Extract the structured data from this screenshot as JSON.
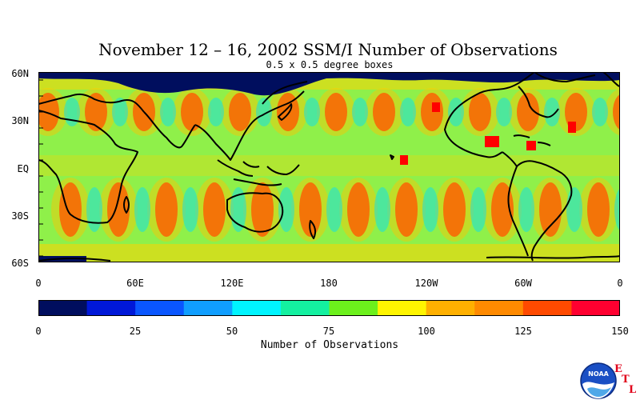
{
  "title": "November 12 – 16, 2002 SSM/I Number of Observations",
  "subtitle": "0.5 x 0.5 degree boxes",
  "lat_labels": [
    "60N",
    "30N",
    "EQ",
    "30S",
    "60S"
  ],
  "lon_labels": [
    "0",
    "60E",
    "120E",
    "180",
    "120W",
    "60W",
    "0"
  ],
  "colorbar": {
    "colors": [
      "#000e5e",
      "#0018d8",
      "#0a56ff",
      "#109eff",
      "#00f4ff",
      "#14f0a0",
      "#6cf01c",
      "#fff500",
      "#ffb000",
      "#ff8a00",
      "#ff4a00",
      "#ff0030"
    ],
    "ticks": [
      "0",
      "25",
      "50",
      "75",
      "100",
      "125",
      "150"
    ],
    "label": "Number of Observations"
  },
  "chart_data": {
    "type": "heatmap",
    "title": "November 12 – 16, 2002 SSM/I Number of Observations",
    "subtitle": "0.5 x 0.5 degree boxes",
    "x_axis": {
      "range": [
        0,
        360
      ],
      "tick_labels": [
        "0",
        "60E",
        "120E",
        "180",
        "120W",
        "60W",
        "0"
      ]
    },
    "y_axis": {
      "range": [
        -60,
        60
      ],
      "tick_labels": [
        "60S",
        "30S",
        "EQ",
        "30N",
        "60N"
      ]
    },
    "value_range": [
      0,
      150
    ],
    "colorbar_ticks": [
      0,
      25,
      50,
      75,
      100,
      125,
      150
    ],
    "colorbar_label": "Number of Observations"
  },
  "logo": {
    "name": "NOAA",
    "letters": [
      "E",
      "T",
      "L"
    ]
  }
}
